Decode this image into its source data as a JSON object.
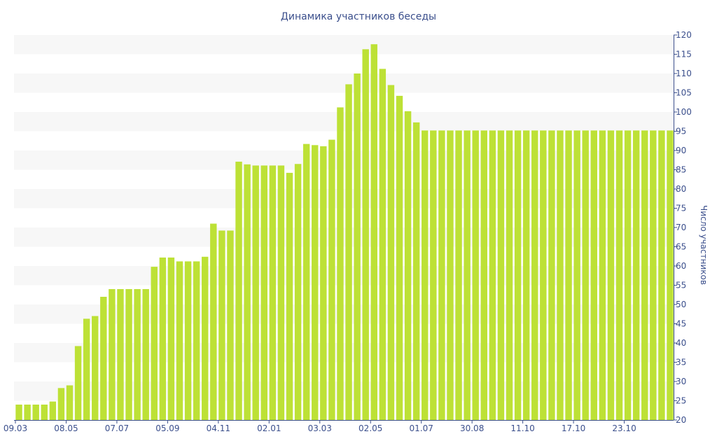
{
  "chart_data": {
    "type": "bar",
    "title": "Динамика участников беседы",
    "xlabel": "",
    "ylabel": "Число участников",
    "ylim": [
      20,
      120
    ],
    "y_ticks": [
      20,
      25,
      30,
      35,
      40,
      45,
      50,
      55,
      60,
      65,
      70,
      75,
      80,
      85,
      90,
      95,
      100,
      105,
      110,
      115,
      120
    ],
    "y_axis_side": "right",
    "grid": "alternating-bands",
    "bar_color": "#bde136",
    "x_tick_labels": [
      {
        "index": 0,
        "label": "09.03"
      },
      {
        "index": 6,
        "label": "08.05"
      },
      {
        "index": 12,
        "label": "07.07"
      },
      {
        "index": 18,
        "label": "05.09"
      },
      {
        "index": 24,
        "label": "04.11"
      },
      {
        "index": 30,
        "label": "02.01"
      },
      {
        "index": 36,
        "label": "03.03"
      },
      {
        "index": 42,
        "label": "02.05"
      },
      {
        "index": 48,
        "label": "01.07"
      },
      {
        "index": 54,
        "label": "30.08"
      },
      {
        "index": 60,
        "label": "11.10"
      },
      {
        "index": 66,
        "label": "17.10"
      },
      {
        "index": 72,
        "label": "23.10"
      }
    ],
    "values": [
      24,
      24,
      24,
      24,
      24.8,
      28.3,
      29,
      39.2,
      46.3,
      47,
      52,
      54,
      54,
      54,
      54,
      54,
      59.8,
      62.2,
      62.2,
      61.2,
      61.2,
      61.2,
      62.4,
      71,
      69.2,
      69.2,
      87.1,
      86.4,
      86.1,
      86.1,
      86.1,
      86.1,
      84.2,
      86.5,
      91.7,
      91.4,
      91.1,
      92.8,
      101.2,
      107.2,
      110,
      116.3,
      117.6,
      111.2,
      107,
      104.2,
      100.2,
      97.3,
      95.2,
      95.2,
      95.2,
      95.2,
      95.2,
      95.2,
      95.2,
      95.2,
      95.2,
      95.2,
      95.2,
      95.2,
      95.2,
      95.2,
      95.2,
      95.2,
      95.2,
      95.2,
      95.2,
      95.2,
      95.2,
      95.2,
      95.2,
      95.2,
      95.2,
      95.2,
      95.2,
      95.2,
      95.2,
      95.2
    ]
  }
}
